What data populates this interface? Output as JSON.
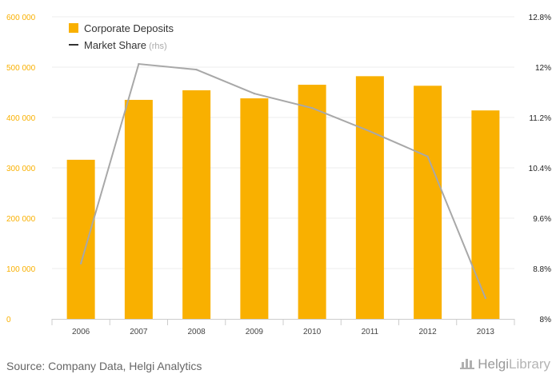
{
  "chart_data": {
    "type": "bar+line",
    "categories": [
      "2006",
      "2007",
      "2008",
      "2009",
      "2010",
      "2011",
      "2012",
      "2013"
    ],
    "series": [
      {
        "name": "Corporate Deposits",
        "type": "bar",
        "axis": "left",
        "values": [
          316000,
          435000,
          454000,
          438000,
          465000,
          482000,
          463000,
          414000
        ]
      },
      {
        "name": "Market Share",
        "type": "line",
        "axis": "right",
        "values": [
          8.88,
          12.05,
          11.96,
          11.58,
          11.35,
          10.98,
          10.58,
          8.33
        ]
      }
    ],
    "y_left": {
      "min": 0,
      "max": 600000,
      "ticks": [
        0,
        100000,
        200000,
        300000,
        400000,
        500000,
        600000
      ],
      "tick_labels": [
        "0",
        "100 000",
        "200 000",
        "300 000",
        "400 000",
        "500 000",
        "600 000"
      ]
    },
    "y_right": {
      "min": 8,
      "max": 12.8,
      "ticks": [
        8,
        8.8,
        9.6,
        10.4,
        11.2,
        12,
        12.8
      ],
      "tick_labels": [
        "8%",
        "8.8%",
        "9.6%",
        "10.4%",
        "11.2%",
        "12%",
        "12.8%"
      ]
    },
    "legend": {
      "position": "top-left",
      "items": [
        {
          "label": "Corporate Deposits",
          "suffix": ""
        },
        {
          "label": "Market Share",
          "suffix": " (rhs)"
        }
      ]
    },
    "grid": true,
    "colors": {
      "bar": "#f9b000",
      "line": "#a8a8a8",
      "legend_line": "#333333",
      "left_tick": "#f9b000",
      "right_tick": "#222222",
      "grid": "#ececec"
    }
  },
  "footer": {
    "source": "Source: Company Data, Helgi Analytics",
    "logo_main": "Helgi",
    "logo_sub": "Library"
  }
}
